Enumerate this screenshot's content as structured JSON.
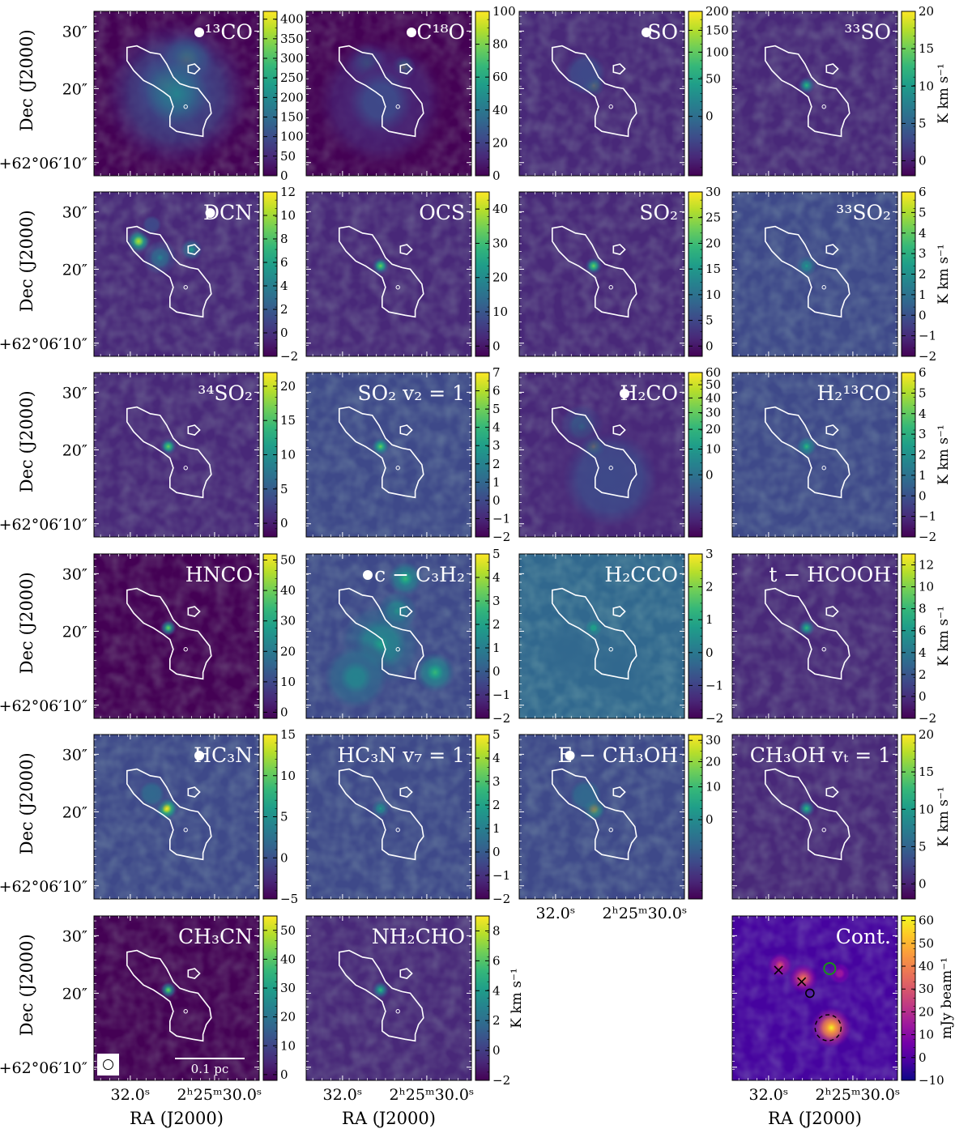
{
  "chart_data": {
    "type": "heatmap",
    "figure": "grid of integrated intensity maps",
    "grid": {
      "rows": 6,
      "cols": 4
    },
    "colormap": "viridis",
    "colormap_continuum": "plasma",
    "contour_color": "#ffffff",
    "marker_color": "#ffffff",
    "y_tick_labels": [
      "30″",
      "20″",
      "+62°06′10″"
    ],
    "x_tick_labels": [
      "32.0ˢ",
      "2ʰ25ᵐ30.0ˢ"
    ],
    "x_axis_label": "RA (J2000)",
    "y_axis_label": "Dec (J2000)",
    "colorbar_label": "K km s⁻¹",
    "colorbar_label_continuum": "mJy beam⁻¹",
    "scale_bar_label": "0.1 pc",
    "panels": [
      {
        "row": 0,
        "col": 0,
        "label": "¹³CO",
        "dot": true,
        "cbar_min": 0,
        "cbar_max": 420,
        "ticks": [
          0,
          50,
          100,
          150,
          200,
          250,
          300,
          350,
          400
        ],
        "nonlinear": false,
        "emission": [
          {
            "x": 0.45,
            "y": 0.45,
            "s": 0.13,
            "a": 1.0
          },
          {
            "x": 0.56,
            "y": 0.3,
            "s": 0.12,
            "a": 0.75
          },
          {
            "x": 0.5,
            "y": 0.5,
            "s": 0.3,
            "a": 0.45
          }
        ]
      },
      {
        "row": 0,
        "col": 1,
        "label": "C¹⁸O",
        "dot": true,
        "cbar_min": 0,
        "cbar_max": 100,
        "ticks": [
          0,
          20,
          40,
          60,
          80,
          100
        ],
        "nonlinear": false,
        "emission": [
          {
            "x": 0.37,
            "y": 0.32,
            "s": 0.09,
            "a": 0.55
          },
          {
            "x": 0.59,
            "y": 0.34,
            "s": 0.05,
            "a": 0.85
          },
          {
            "x": 0.48,
            "y": 0.46,
            "s": 0.1,
            "a": 0.35
          },
          {
            "x": 0.45,
            "y": 0.55,
            "s": 0.3,
            "a": 0.25
          }
        ]
      },
      {
        "row": 0,
        "col": 2,
        "label": "SO",
        "dot": true,
        "cbar_min": -30,
        "cbar_max": 200,
        "ticks": [
          0,
          50,
          100,
          150,
          200
        ],
        "nonlinear": true,
        "emission": [
          {
            "x": 0.45,
            "y": 0.45,
            "s": 0.045,
            "a": 1.0
          },
          {
            "x": 0.4,
            "y": 0.38,
            "s": 0.13,
            "a": 0.2
          }
        ]
      },
      {
        "row": 0,
        "col": 3,
        "label": "³³SO",
        "dot": false,
        "cbar_min": -2,
        "cbar_max": 20,
        "ticks": [
          0,
          5,
          10,
          15,
          20
        ],
        "nonlinear": false,
        "emission": [
          {
            "x": 0.45,
            "y": 0.45,
            "s": 0.035,
            "a": 0.65
          }
        ]
      },
      {
        "row": 1,
        "col": 0,
        "label": "DCN",
        "dot": true,
        "cbar_min": -2,
        "cbar_max": 12,
        "ticks": [
          -2,
          0,
          2,
          4,
          6,
          8,
          10,
          12
        ],
        "nonlinear": false,
        "emission": [
          {
            "x": 0.27,
            "y": 0.3,
            "s": 0.05,
            "a": 0.9
          },
          {
            "x": 0.4,
            "y": 0.4,
            "s": 0.07,
            "a": 0.45
          },
          {
            "x": 0.59,
            "y": 0.35,
            "s": 0.045,
            "a": 0.55
          },
          {
            "x": 0.35,
            "y": 0.2,
            "s": 0.06,
            "a": 0.25
          }
        ]
      },
      {
        "row": 1,
        "col": 1,
        "label": "OCS",
        "dot": false,
        "cbar_min": -3,
        "cbar_max": 45,
        "ticks": [
          0,
          10,
          20,
          30,
          40
        ],
        "nonlinear": false,
        "emission": [
          {
            "x": 0.45,
            "y": 0.45,
            "s": 0.035,
            "a": 0.75
          }
        ]
      },
      {
        "row": 1,
        "col": 2,
        "label": "SO₂",
        "dot": false,
        "cbar_min": -2,
        "cbar_max": 30,
        "ticks": [
          0,
          5,
          10,
          15,
          20,
          25,
          30
        ],
        "nonlinear": false,
        "emission": [
          {
            "x": 0.45,
            "y": 0.45,
            "s": 0.035,
            "a": 0.8
          }
        ]
      },
      {
        "row": 1,
        "col": 3,
        "label": "³³SO₂",
        "dot": false,
        "cbar_min": -2,
        "cbar_max": 6,
        "ticks": [
          -2,
          -1,
          0,
          1,
          2,
          3,
          4,
          5,
          6
        ],
        "nonlinear": false,
        "emission": [
          {
            "x": 0.45,
            "y": 0.45,
            "s": 0.04,
            "a": 0.6
          }
        ]
      },
      {
        "row": 2,
        "col": 0,
        "label": "³⁴SO₂",
        "dot": false,
        "cbar_min": -2,
        "cbar_max": 22,
        "ticks": [
          0,
          5,
          10,
          15,
          20
        ],
        "nonlinear": false,
        "emission": [
          {
            "x": 0.45,
            "y": 0.45,
            "s": 0.035,
            "a": 0.75
          }
        ]
      },
      {
        "row": 2,
        "col": 1,
        "label": "SO₂ v₂ = 1",
        "dot": false,
        "cbar_min": -2,
        "cbar_max": 7,
        "ticks": [
          -2,
          -1,
          0,
          1,
          2,
          3,
          4,
          5,
          6,
          7
        ],
        "nonlinear": false,
        "emission": [
          {
            "x": 0.45,
            "y": 0.45,
            "s": 0.035,
            "a": 0.75
          }
        ]
      },
      {
        "row": 2,
        "col": 2,
        "label": "H₂CO",
        "dot": true,
        "cbar_min": -10,
        "cbar_max": 60,
        "ticks": [
          0,
          10,
          20,
          30,
          40,
          50,
          60
        ],
        "nonlinear": true,
        "emission": [
          {
            "x": 0.45,
            "y": 0.45,
            "s": 0.05,
            "a": 1.0
          },
          {
            "x": 0.38,
            "y": 0.33,
            "s": 0.09,
            "a": 0.4
          },
          {
            "x": 0.55,
            "y": 0.65,
            "s": 0.3,
            "a": 0.25
          }
        ]
      },
      {
        "row": 2,
        "col": 3,
        "label": "H₂¹³CO",
        "dot": false,
        "cbar_min": -2,
        "cbar_max": 6,
        "ticks": [
          -2,
          -1,
          0,
          1,
          2,
          3,
          4,
          5,
          6
        ],
        "nonlinear": false,
        "emission": [
          {
            "x": 0.45,
            "y": 0.45,
            "s": 0.04,
            "a": 0.65
          }
        ]
      },
      {
        "row": 3,
        "col": 0,
        "label": "HNCO",
        "dot": false,
        "cbar_min": -2,
        "cbar_max": 52,
        "ticks": [
          0,
          10,
          20,
          30,
          40,
          50
        ],
        "nonlinear": false,
        "emission": [
          {
            "x": 0.45,
            "y": 0.45,
            "s": 0.035,
            "a": 0.75
          }
        ]
      },
      {
        "row": 3,
        "col": 1,
        "label": "c − C₃H₂",
        "dot": true,
        "cbar_min": -2,
        "cbar_max": 5,
        "ticks": [
          -2,
          -1,
          0,
          1,
          2,
          3,
          4,
          5
        ],
        "nonlinear": false,
        "emission": [
          {
            "x": 0.6,
            "y": 0.15,
            "s": 0.07,
            "a": 0.65
          },
          {
            "x": 0.55,
            "y": 0.35,
            "s": 0.08,
            "a": 0.6
          },
          {
            "x": 0.45,
            "y": 0.55,
            "s": 0.16,
            "a": 0.55
          },
          {
            "x": 0.78,
            "y": 0.72,
            "s": 0.08,
            "a": 0.7
          },
          {
            "x": 0.3,
            "y": 0.75,
            "s": 0.15,
            "a": 0.4
          }
        ]
      },
      {
        "row": 3,
        "col": 2,
        "label": "H₂CCO",
        "dot": false,
        "cbar_min": -2,
        "cbar_max": 3,
        "ticks": [
          -2,
          -1,
          0,
          1,
          2,
          3
        ],
        "nonlinear": false,
        "emission": [
          {
            "x": 0.45,
            "y": 0.45,
            "s": 0.04,
            "a": 0.6
          },
          {
            "x": 0.3,
            "y": 0.6,
            "s": 0.12,
            "a": 0.25
          },
          {
            "x": 0.6,
            "y": 0.7,
            "s": 0.12,
            "a": 0.2
          }
        ]
      },
      {
        "row": 3,
        "col": 3,
        "label": "t − HCOOH",
        "dot": false,
        "cbar_min": -2,
        "cbar_max": 13,
        "ticks": [
          -2,
          0,
          2,
          4,
          6,
          8,
          10,
          12
        ],
        "nonlinear": false,
        "emission": [
          {
            "x": 0.45,
            "y": 0.45,
            "s": 0.035,
            "a": 0.7
          }
        ]
      },
      {
        "row": 4,
        "col": 0,
        "label": "HC₃N",
        "dot": true,
        "cbar_min": -5,
        "cbar_max": 15,
        "ticks": [
          -5,
          0,
          5,
          10,
          15
        ],
        "nonlinear": false,
        "emission": [
          {
            "x": 0.44,
            "y": 0.45,
            "s": 0.045,
            "a": 1.0
          },
          {
            "x": 0.35,
            "y": 0.36,
            "s": 0.08,
            "a": 0.3
          }
        ]
      },
      {
        "row": 4,
        "col": 1,
        "label": "HC₃N v₇ = 1",
        "dot": false,
        "cbar_min": -2,
        "cbar_max": 5,
        "ticks": [
          -2,
          -1,
          0,
          1,
          2,
          3,
          4,
          5
        ],
        "nonlinear": false,
        "emission": [
          {
            "x": 0.45,
            "y": 0.45,
            "s": 0.035,
            "a": 0.6
          }
        ]
      },
      {
        "row": 4,
        "col": 2,
        "label": "E − CH₃OH",
        "dot": true,
        "cbar_min": -10,
        "cbar_max": 33,
        "ticks": [
          0,
          10,
          20,
          30
        ],
        "nonlinear": true,
        "emission": [
          {
            "x": 0.45,
            "y": 0.45,
            "s": 0.05,
            "a": 1.0
          },
          {
            "x": 0.4,
            "y": 0.37,
            "s": 0.1,
            "a": 0.3
          }
        ]
      },
      {
        "row": 4,
        "col": 3,
        "label": "CH₃OH vₜ = 1",
        "dot": false,
        "cbar_min": -2,
        "cbar_max": 20,
        "ticks": [
          0,
          5,
          10,
          15,
          20
        ],
        "nonlinear": false,
        "emission": [
          {
            "x": 0.45,
            "y": 0.45,
            "s": 0.035,
            "a": 0.7
          }
        ]
      },
      {
        "row": 5,
        "col": 0,
        "label": "CH₃CN",
        "dot": false,
        "cbar_min": -2,
        "cbar_max": 55,
        "ticks": [
          0,
          10,
          20,
          30,
          40,
          50
        ],
        "nonlinear": false,
        "emission": [
          {
            "x": 0.45,
            "y": 0.45,
            "s": 0.035,
            "a": 0.75
          }
        ]
      },
      {
        "row": 5,
        "col": 1,
        "label": "NH₂CHO",
        "dot": false,
        "cbar_min": -2,
        "cbar_max": 9,
        "ticks": [
          -2,
          0,
          2,
          4,
          6,
          8
        ],
        "nonlinear": false,
        "emission": [
          {
            "x": 0.45,
            "y": 0.45,
            "s": 0.035,
            "a": 0.65
          }
        ]
      },
      {
        "row": 5,
        "col": 3,
        "label": "Cont.",
        "dot": false,
        "continuum": true,
        "cbar_min": -10,
        "cbar_max": 62,
        "ticks": [
          -10,
          0,
          10,
          20,
          30,
          40,
          50,
          60
        ],
        "nonlinear": false,
        "emission": [
          {
            "x": 0.29,
            "y": 0.3,
            "s": 0.05,
            "a": 0.55
          },
          {
            "x": 0.43,
            "y": 0.38,
            "s": 0.06,
            "a": 0.65
          },
          {
            "x": 0.6,
            "y": 0.68,
            "s": 0.08,
            "a": 0.95
          },
          {
            "x": 0.65,
            "y": 0.35,
            "s": 0.05,
            "a": 0.35
          }
        ]
      }
    ]
  }
}
